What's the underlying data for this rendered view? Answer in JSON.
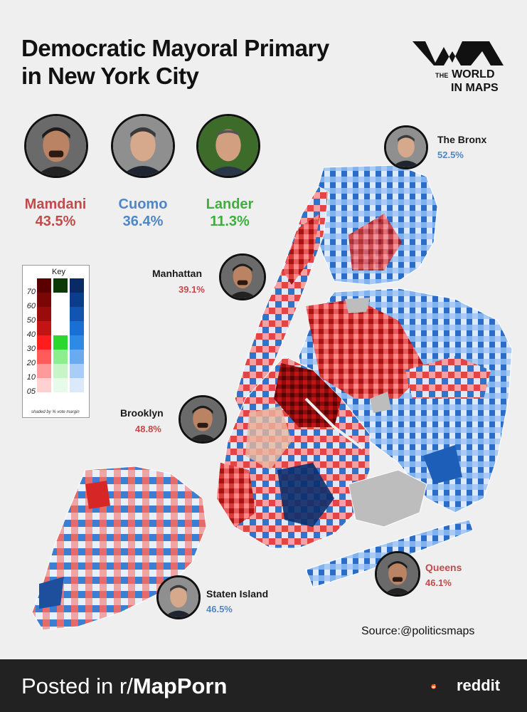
{
  "title": {
    "line1": "Democratic Mayoral Primary",
    "line2": "in New York City"
  },
  "logo": {
    "the": "THE",
    "world": "WORLD",
    "in_maps": "IN MAPS"
  },
  "candidates": [
    {
      "name": "Mamdani",
      "pct": "43.5%",
      "color": "#c24a4a"
    },
    {
      "name": "Cuomo",
      "pct": "36.4%",
      "color": "#4f86c6"
    },
    {
      "name": "Lander",
      "pct": "11.3%",
      "color": "#3fae3f"
    }
  ],
  "boroughs": {
    "bronx": {
      "name": "The Bronx",
      "pct": "52.5%",
      "color": "#4f86c6"
    },
    "manhattan": {
      "name": "Manhattan",
      "pct": "39.1%",
      "color": "#c24a4a"
    },
    "brooklyn": {
      "name": "Brooklyn",
      "pct": "48.8%",
      "color": "#c24a4a"
    },
    "queens": {
      "name": "Queens",
      "pct": "46.1%",
      "color": "#c24a4a"
    },
    "staten_island": {
      "name": "Staten Island",
      "pct": "46.5%",
      "color": "#4f86c6"
    }
  },
  "key": {
    "title": "Key",
    "levels": [
      "70",
      "60",
      "50",
      "40",
      "30",
      "20",
      "10",
      "05"
    ],
    "note": "shaded by % vote margin",
    "mamdani_colors": [
      "#5a0000",
      "#7a0606",
      "#9a0c0c",
      "#c21414",
      "#ff1c1c",
      "#ff5b5b",
      "#ff9a9a",
      "#ffd1d1"
    ],
    "lander_colors": [
      "#0c3a06",
      "#ffffff",
      "#ffffff",
      "#ffffff",
      "#2bd82b",
      "#8cee8c",
      "#c7f5c7",
      "#e8fbe8"
    ],
    "cuomo_colors": [
      "#0a2a66",
      "#0b3d8a",
      "#1155b0",
      "#1a6fd4",
      "#2f8ae6",
      "#6aaaf0",
      "#a8cdf6",
      "#dce9fb"
    ]
  },
  "source": "Source:@politicsmaps",
  "footer": {
    "prefix": "Posted in r/",
    "sub": "MapPorn",
    "brand": "reddit"
  }
}
